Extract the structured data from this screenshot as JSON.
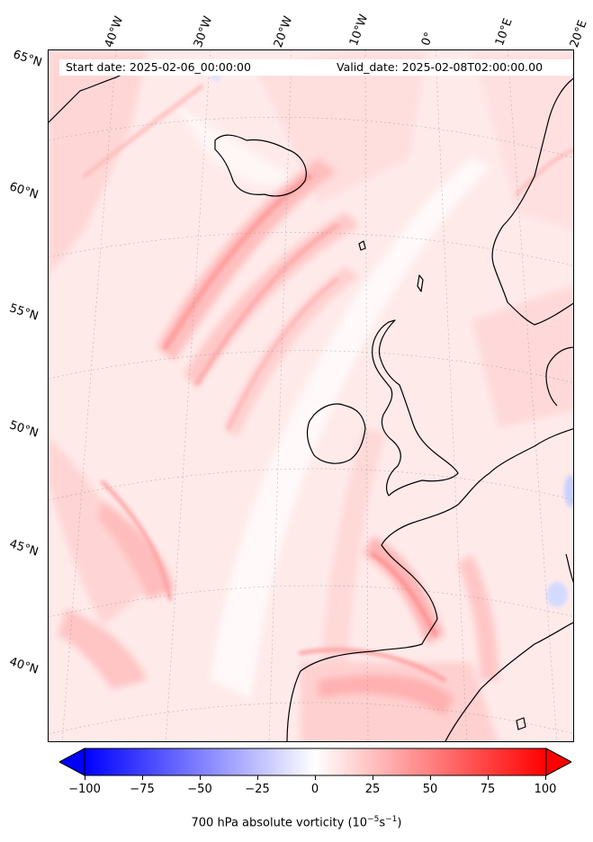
{
  "map": {
    "start_label": "Start date: 2025-02-06_00:00:00",
    "valid_label": "Valid_date: 2025-02-08T02:00:00.00",
    "longitude_labels": [
      "40°W",
      "30°W",
      "20°W",
      "10°W",
      "0°",
      "10°E",
      "20°E"
    ],
    "latitude_labels": [
      "65°N",
      "60°N",
      "55°N",
      "50°N",
      "45°N",
      "40°N"
    ],
    "field": "700 hPa absolute vorticity",
    "colors": {
      "positive": "#ff0000",
      "negative": "#0000ff",
      "neutral": "#ffffff",
      "background": "#fff2f2"
    }
  },
  "colorbar": {
    "label": "700 hPa absolute vorticity (10",
    "label_exp1": "−5",
    "label_mid": "s",
    "label_exp2": "−1",
    "label_end": ")",
    "min": -100,
    "max": 100,
    "ticks": [
      "−100",
      "−75",
      "−50",
      "−25",
      "0",
      "25",
      "50",
      "75",
      "100"
    ],
    "tick_values": [
      -100,
      -75,
      -50,
      -25,
      0,
      25,
      50,
      75,
      100
    ],
    "colormap": "bwr",
    "extend": "both"
  }
}
